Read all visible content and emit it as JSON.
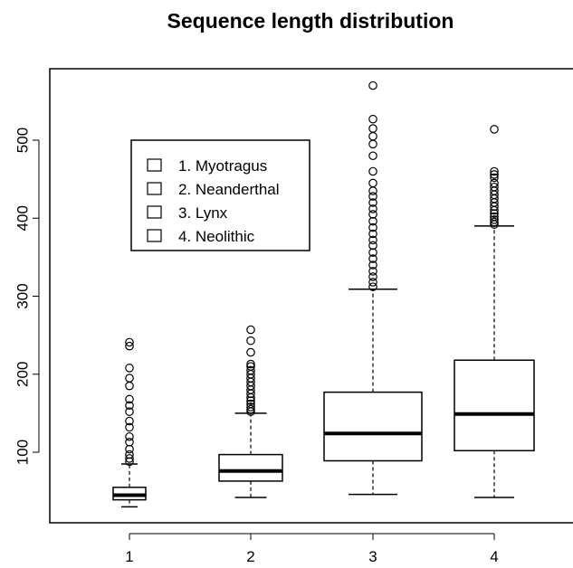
{
  "chart_data": {
    "type": "box",
    "title": "Sequence length distribution",
    "xlabel": "",
    "ylabel": "",
    "categories": [
      "1",
      "2",
      "3",
      "4"
    ],
    "ylim": [
      0,
      580
    ],
    "yticks": [
      "100",
      "200",
      "300",
      "400",
      "500"
    ],
    "boxes": [
      {
        "category": "1",
        "whisker_low": 30,
        "q1": 39,
        "median": 45,
        "q3": 55,
        "whisker_high": 85,
        "outliers": [
          88,
          92,
          97,
          104,
          113,
          120,
          132,
          140,
          152,
          160,
          168,
          185,
          195,
          208,
          236,
          241
        ]
      },
      {
        "category": "2",
        "whisker_low": 42,
        "q1": 63,
        "median": 76,
        "q3": 97,
        "whisker_high": 150,
        "outliers": [
          152,
          155,
          158,
          162,
          166,
          170,
          175,
          180,
          185,
          190,
          195,
          200,
          205,
          210,
          213,
          228,
          243,
          257
        ]
      },
      {
        "category": "3",
        "whisker_low": 46,
        "q1": 89,
        "median": 124,
        "q3": 177,
        "whisker_high": 309,
        "outliers": [
          312,
          318,
          325,
          332,
          340,
          348,
          356,
          365,
          372,
          380,
          388,
          396,
          405,
          412,
          420,
          428,
          435,
          445,
          460,
          480,
          495,
          505,
          515,
          527,
          570
        ]
      },
      {
        "category": "4",
        "whisker_low": 42,
        "q1": 102,
        "median": 149,
        "q3": 218,
        "whisker_high": 390,
        "outliers": [
          392,
          395,
          398,
          402,
          406,
          410,
          415,
          420,
          425,
          430,
          435,
          440,
          445,
          452,
          456,
          460,
          514
        ]
      }
    ],
    "legend": {
      "placement": "top-left",
      "entries": [
        "1. Myotragus",
        "2. Neanderthal",
        "3. Lynx",
        "4. Neolithic"
      ]
    }
  }
}
